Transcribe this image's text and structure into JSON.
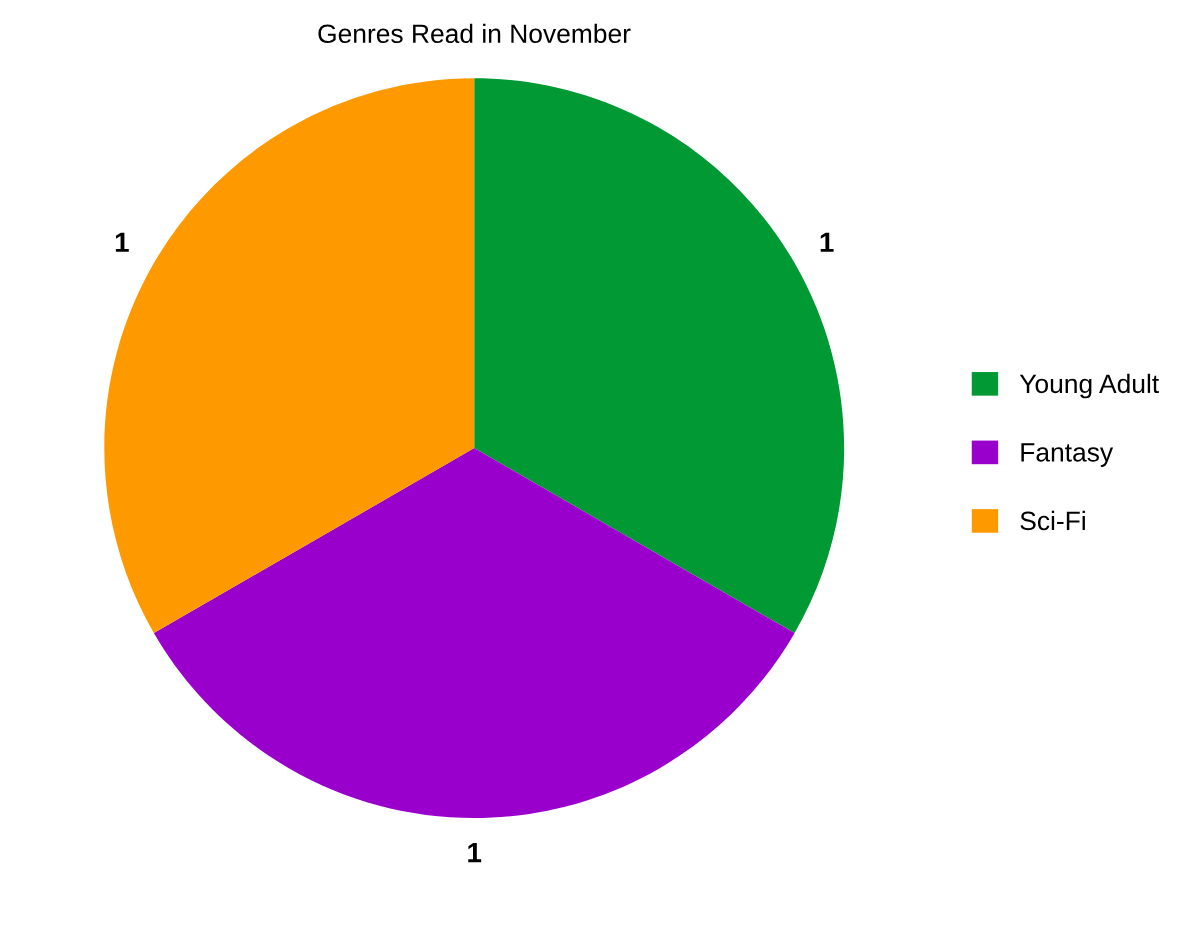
{
  "chart_data": {
    "type": "pie",
    "title": "Genres Read in November",
    "categories": [
      "Young Adult",
      "Fantasy",
      "Sci-Fi"
    ],
    "values": [
      1,
      1,
      1
    ],
    "colors": [
      "#009933",
      "#9900cc",
      "#ff9900"
    ],
    "data_labels": true,
    "legend": "right"
  }
}
